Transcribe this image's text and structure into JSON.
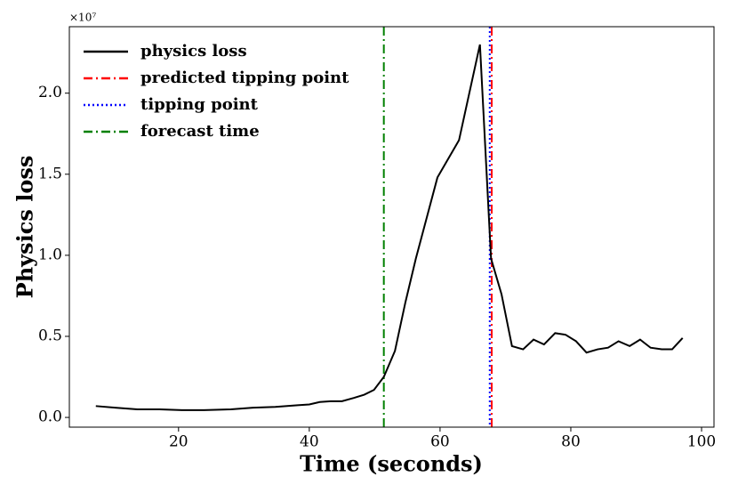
{
  "chart_data": {
    "type": "line",
    "xlabel": "Time (seconds)",
    "ylabel": "Physics loss",
    "offset_text": "×10⁷",
    "xlim": [
      3.3,
      101.9
    ],
    "xticks": [
      20,
      40,
      60,
      80,
      100
    ],
    "ylim": [
      -0.06,
      2.41
    ],
    "yticks": [
      {
        "value": 0,
        "label": "0.0"
      },
      0.5,
      {
        "value": 1,
        "label": "1.0"
      },
      1.5,
      {
        "value": 2,
        "label": "2.0"
      }
    ],
    "legend": "upper left",
    "series": [
      {
        "name": "physics loss",
        "color": "#000000",
        "x": [
          7.35,
          10.3,
          13.7,
          17.1,
          20.5,
          23.9,
          28,
          31.4,
          34.8,
          38.2,
          40,
          41.6,
          43.3,
          45,
          46.8,
          48.4,
          49.9,
          51.4,
          53.1,
          54.7,
          56.3,
          59.6,
          62.9,
          66.1,
          67.8,
          69.4,
          71,
          72.7,
          74.3,
          75.9,
          77.6,
          79.2,
          80.8,
          82.4,
          84.1,
          85.7,
          87.3,
          89,
          90.6,
          92.2,
          93.9,
          95.5,
          97.1
        ],
        "values": [
          0.07,
          0.06,
          0.05,
          0.05,
          0.045,
          0.045,
          0.05,
          0.06,
          0.065,
          0.075,
          0.08,
          0.095,
          0.1,
          0.1,
          0.12,
          0.14,
          0.17,
          0.25,
          0.41,
          0.71,
          0.98,
          1.48,
          1.71,
          2.3,
          0.98,
          0.76,
          0.44,
          0.42,
          0.48,
          0.45,
          0.52,
          0.51,
          0.47,
          0.4,
          0.42,
          0.43,
          0.47,
          0.44,
          0.48,
          0.43,
          0.42,
          0.42,
          0.49
        ]
      }
    ],
    "vlines": [
      {
        "name": "predicted tipping point",
        "color": "#ff0000",
        "x": 67.9,
        "linestyle": "dashdot"
      },
      {
        "name": "tipping point",
        "color": "#0000ff",
        "x": 67.6,
        "linestyle": "dotted"
      },
      {
        "name": "forecast time",
        "color": "#008000",
        "x": 51.4,
        "linestyle": "dashdot"
      }
    ]
  }
}
